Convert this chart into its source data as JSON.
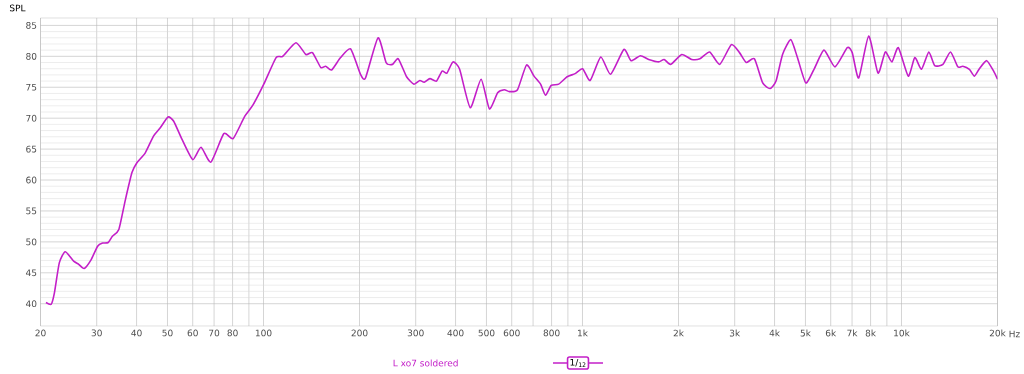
{
  "chart_data": {
    "type": "line",
    "ylabel": "SPL",
    "log": "x",
    "grid": true,
    "legend": "bottom",
    "marker": "none",
    "line_style": "solid",
    "annotations": [
      "1/$_{12}$"
    ],
    "xlim": [
      20,
      20000
    ],
    "ylim": [
      36.4,
      86.2
    ],
    "xticks": [
      20,
      30,
      40,
      50,
      60,
      70,
      80,
      {
        "value": 90,
        "label": null
      },
      100,
      200,
      300,
      400,
      500,
      600,
      {
        "value": 700,
        "label": null
      },
      800,
      {
        "value": 900,
        "label": null
      },
      {
        "value": 1000,
        "label": "1k"
      },
      {
        "value": 2000,
        "label": "2k"
      },
      {
        "value": 3000,
        "label": "3k"
      },
      {
        "value": 4000,
        "label": "4k"
      },
      {
        "value": 5000,
        "label": "5k"
      },
      {
        "value": 6000,
        "label": "6k"
      },
      {
        "value": 7000,
        "label": "7k"
      },
      {
        "value": 8000,
        "label": "8k"
      },
      {
        "value": 9000,
        "label": null
      },
      {
        "value": 10000,
        "label": "10k"
      },
      {
        "value": 20000,
        "label": "20k"
      }
    ],
    "xlabel": "Hz",
    "yticks": [
      40,
      45,
      50,
      55,
      60,
      65,
      70,
      75,
      80,
      85
    ],
    "x": [
      20.8,
      21.6,
      22.1,
      22.9,
      23.9,
      25.4,
      26.3,
      27.4,
      28.8,
      30.2,
      31.3,
      32.6,
      33.6,
      35.2,
      36.9,
      38.7,
      40.1,
      42.6,
      45.2,
      47.4,
      50.2,
      52.3,
      55.5,
      60,
      63.7,
      68.4,
      75.1,
      80.3,
      87.3,
      92.6,
      100.2,
      109.5,
      114.8,
      126.4,
      135.8,
      142.4,
      151.2,
      156.6,
      163.6,
      174.4,
      187.5,
      201.4,
      208.8,
      228.5,
      242.3,
      253.7,
      264.6,
      280.9,
      296.3,
      309.2,
      319,
      332.4,
      348.5,
      363,
      376,
      392.6,
      412,
      444.6,
      481,
      510.6,
      542,
      568.6,
      589.8,
      625.6,
      667.6,
      705,
      739,
      766,
      798,
      842,
      895,
      948,
      1001,
      1057,
      1141,
      1225,
      1348,
      1420,
      1518,
      1613,
      1732,
      1803,
      1891,
      2047,
      2199,
      2334,
      2506,
      2693,
      2929,
      3106,
      3260,
      3459,
      3673,
      3872,
      4043,
      4238,
      4498,
      4719,
      5012,
      5318,
      5715,
      6186,
      6761,
      7009,
      7345,
      7891,
      8440,
      8893,
      9330,
      9778,
      10500,
      11010,
      11554,
      12180,
      12710,
      13490,
      14250,
      15020,
      15570,
      16330,
      16930,
      17550,
      18500,
      19450,
      20000
    ],
    "series": [
      {
        "name": "L xo7 soldered",
        "color": "#c31fc8",
        "values": [
          40.2,
          39.9,
          41.7,
          46.6,
          48.4,
          46.9,
          46.4,
          45.7,
          47.1,
          49.3,
          49.8,
          49.9,
          50.9,
          52.0,
          56.8,
          61.2,
          62.8,
          64.4,
          67.1,
          68.4,
          70.2,
          69.5,
          66.6,
          63.3,
          65.3,
          62.9,
          67.5,
          66.7,
          70.3,
          72.1,
          75.5,
          79.8,
          80.0,
          82.2,
          80.3,
          80.6,
          78.2,
          78.4,
          77.8,
          79.8,
          81.2,
          77.1,
          76.5,
          83.0,
          79.0,
          78.7,
          79.6,
          76.7,
          75.5,
          76.1,
          75.8,
          76.4,
          76.0,
          77.6,
          77.3,
          79.1,
          77.9,
          71.7,
          76.3,
          71.5,
          74.1,
          74.6,
          74.3,
          74.6,
          78.6,
          76.8,
          75.5,
          73.7,
          75.3,
          75.5,
          76.7,
          77.2,
          78.0,
          76.1,
          79.9,
          77.1,
          81.1,
          79.3,
          80.1,
          79.5,
          79.1,
          79.5,
          78.7,
          80.3,
          79.5,
          79.6,
          80.7,
          78.7,
          81.9,
          80.6,
          79.0,
          79.6,
          75.7,
          74.8,
          76.0,
          80.3,
          82.7,
          79.8,
          75.7,
          77.9,
          81.0,
          78.3,
          81.4,
          80.6,
          76.5,
          83.3,
          77.3,
          80.7,
          79.1,
          81.4,
          76.8,
          79.8,
          77.9,
          80.7,
          78.5,
          78.7,
          80.7,
          78.3,
          78.4,
          77.9,
          76.8,
          78.0,
          79.3,
          77.6,
          76.3
        ]
      }
    ]
  }
}
